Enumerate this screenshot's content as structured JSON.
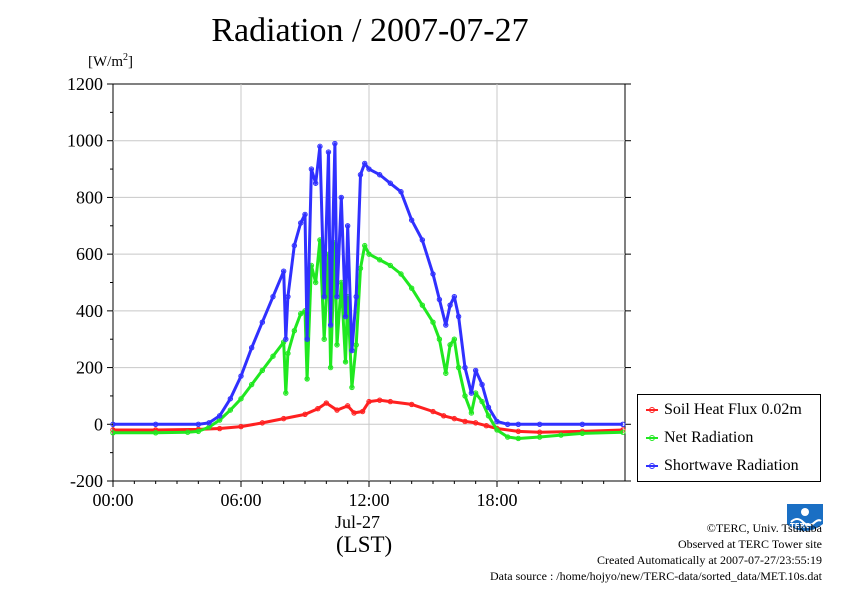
{
  "title": "Radiation / 2007-07-27",
  "ylabel_unit": "[W/m",
  "ylabel_sup": "2",
  "ylabel_close": "]",
  "date_label": "Jul-27",
  "lst_label": "(LST)",
  "credits": [
    "©TERC, Univ. Tsukuba",
    "Observed at TERC Tower site",
    "Created Automatically at 2007-07-27/23:55:19",
    "Data source : /home/hojyo/new/TERC-data/sorted_data/MET.10s.dat"
  ],
  "logo": {
    "icon": "terc-logo-icon",
    "text": "TERC"
  },
  "chart_data": {
    "type": "line",
    "title": "Radiation / 2007-07-27",
    "ylabel": "[W/m2]",
    "xlabel": "(LST)",
    "x_unit": "hours",
    "xlim": [
      0,
      24
    ],
    "ylim": [
      -200,
      1200
    ],
    "yticks": [
      -200,
      0,
      200,
      400,
      600,
      800,
      1000,
      1200
    ],
    "xticks": [
      {
        "x": 0,
        "label": "00:00"
      },
      {
        "x": 6,
        "label": "06:00"
      },
      {
        "x": 12,
        "label": "12:00"
      },
      {
        "x": 18,
        "label": "18:00"
      }
    ],
    "grid": true,
    "legend_position": "right",
    "series": [
      {
        "name": "Soil Heat Flux 0.02m",
        "color": "#ff2020",
        "x": [
          0,
          2,
          4,
          5,
          6,
          7,
          8,
          9,
          9.6,
          10,
          10.5,
          11,
          11.3,
          11.7,
          12,
          12.5,
          13,
          14,
          15,
          15.5,
          16,
          16.5,
          17,
          17.5,
          18,
          19,
          20,
          22,
          23.9
        ],
        "y": [
          -20,
          -20,
          -18,
          -15,
          -8,
          5,
          20,
          35,
          55,
          75,
          50,
          65,
          40,
          45,
          80,
          85,
          80,
          70,
          45,
          30,
          20,
          10,
          5,
          -5,
          -15,
          -25,
          -28,
          -25,
          -20
        ]
      },
      {
        "name": "Net Radiation",
        "color": "#20e820",
        "x": [
          0,
          2,
          3.5,
          4,
          4.5,
          5,
          5.5,
          6,
          6.5,
          7,
          7.5,
          8,
          8.1,
          8.2,
          8.5,
          8.8,
          9,
          9.1,
          9.3,
          9.5,
          9.7,
          9.9,
          10.1,
          10.2,
          10.4,
          10.5,
          10.7,
          10.9,
          11,
          11.2,
          11.4,
          11.6,
          11.8,
          12,
          12.5,
          13,
          13.5,
          14,
          14.5,
          15,
          15.3,
          15.6,
          15.8,
          16,
          16.2,
          16.5,
          16.8,
          17,
          17.3,
          17.6,
          18,
          18.5,
          19,
          20,
          21,
          22,
          23.9
        ],
        "y": [
          -30,
          -30,
          -28,
          -25,
          -10,
          15,
          50,
          90,
          140,
          190,
          240,
          290,
          110,
          250,
          330,
          390,
          400,
          160,
          560,
          500,
          650,
          300,
          600,
          200,
          640,
          280,
          500,
          220,
          450,
          130,
          280,
          550,
          630,
          600,
          580,
          560,
          530,
          480,
          420,
          360,
          300,
          180,
          280,
          300,
          200,
          100,
          40,
          110,
          80,
          30,
          -20,
          -45,
          -50,
          -45,
          -38,
          -32,
          -28
        ]
      },
      {
        "name": "Shortwave Radiation",
        "color": "#3030ff",
        "x": [
          0,
          2,
          4,
          4.5,
          5,
          5.5,
          6,
          6.5,
          7,
          7.5,
          8,
          8.1,
          8.2,
          8.5,
          8.8,
          9,
          9.1,
          9.3,
          9.5,
          9.7,
          9.9,
          10.1,
          10.2,
          10.4,
          10.5,
          10.7,
          10.9,
          11,
          11.2,
          11.4,
          11.6,
          11.8,
          12,
          12.5,
          13,
          13.5,
          14,
          14.5,
          15,
          15.3,
          15.6,
          15.8,
          16,
          16.2,
          16.5,
          16.8,
          17,
          17.3,
          17.6,
          18,
          18.5,
          19,
          20,
          22,
          23.9
        ],
        "y": [
          0,
          0,
          0,
          5,
          30,
          90,
          170,
          270,
          360,
          450,
          540,
          300,
          450,
          630,
          710,
          740,
          300,
          900,
          850,
          980,
          450,
          960,
          350,
          990,
          450,
          800,
          380,
          700,
          260,
          450,
          880,
          920,
          900,
          880,
          850,
          820,
          720,
          650,
          530,
          440,
          350,
          420,
          450,
          380,
          200,
          110,
          190,
          140,
          60,
          10,
          0,
          0,
          0,
          0,
          0
        ]
      }
    ]
  }
}
